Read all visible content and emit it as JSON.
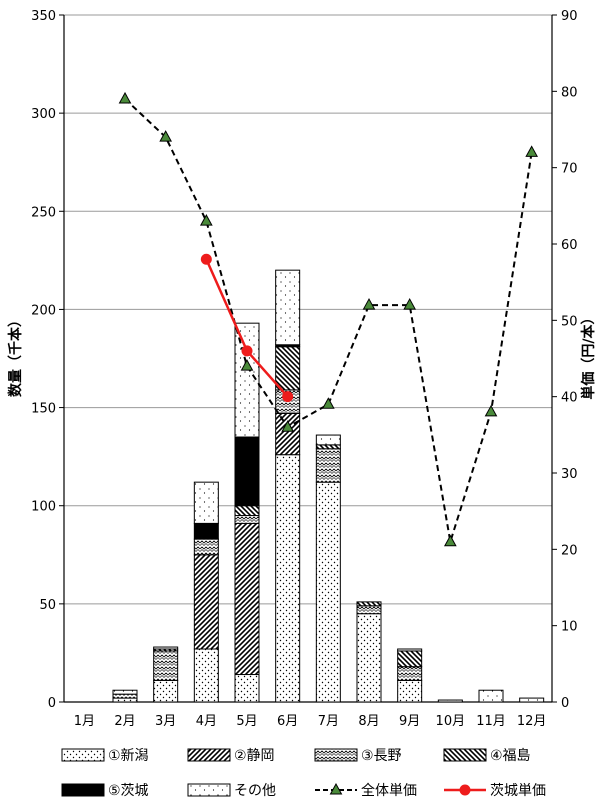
{
  "chart_data": {
    "type": "bar+line",
    "title": "",
    "ylabel_left": "数量（千本）",
    "ylabel_right": "単価（円/本）",
    "ylim_left": [
      0,
      350
    ],
    "ylim_right": [
      0,
      90
    ],
    "yticks_left": [
      0,
      50,
      100,
      150,
      200,
      250,
      300,
      350
    ],
    "yticks_right": [
      0,
      10,
      20,
      30,
      40,
      50,
      60,
      70,
      80,
      90
    ],
    "grid": true,
    "legend_position": "bottom",
    "categories": [
      "1月",
      "2月",
      "3月",
      "4月",
      "5月",
      "6月",
      "7月",
      "8月",
      "9月",
      "10月",
      "11月",
      "12月"
    ],
    "bar_series": [
      {
        "name": "①新潟",
        "values": [
          0,
          2,
          11,
          27,
          14,
          126,
          112,
          45,
          11,
          0,
          0,
          0
        ]
      },
      {
        "name": "②静岡",
        "values": [
          0,
          0,
          0,
          48,
          77,
          21,
          0,
          0,
          0,
          0,
          0,
          0
        ]
      },
      {
        "name": "③長野",
        "values": [
          0,
          2,
          15,
          8,
          4,
          12,
          17,
          4,
          7,
          0,
          0,
          0
        ]
      },
      {
        "name": "④福島",
        "values": [
          0,
          0,
          1,
          0,
          5,
          22,
          2,
          2,
          8,
          0,
          0,
          0
        ]
      },
      {
        "name": "⑤茨城",
        "values": [
          0,
          0,
          0,
          8,
          35,
          1,
          0,
          0,
          0,
          0,
          0,
          0
        ]
      },
      {
        "name": "その他",
        "values": [
          0,
          2,
          1,
          21,
          58,
          38,
          5,
          0,
          1,
          1,
          6,
          2
        ]
      }
    ],
    "line_series": [
      {
        "name": "全体単価",
        "values": [
          null,
          79,
          74,
          63,
          44,
          36,
          39,
          52,
          52,
          21,
          38,
          72
        ]
      },
      {
        "name": "茨城単価",
        "values": [
          null,
          null,
          null,
          58,
          46,
          40,
          null,
          null,
          null,
          null,
          null,
          null
        ]
      }
    ],
    "colors": {
      "grid": "#9a9a9a",
      "bar_stroke": "#000000",
      "overall_line": "#000000",
      "overall_marker": "#4a8a3a",
      "ibaraki_line": "#ee1c1c"
    }
  }
}
